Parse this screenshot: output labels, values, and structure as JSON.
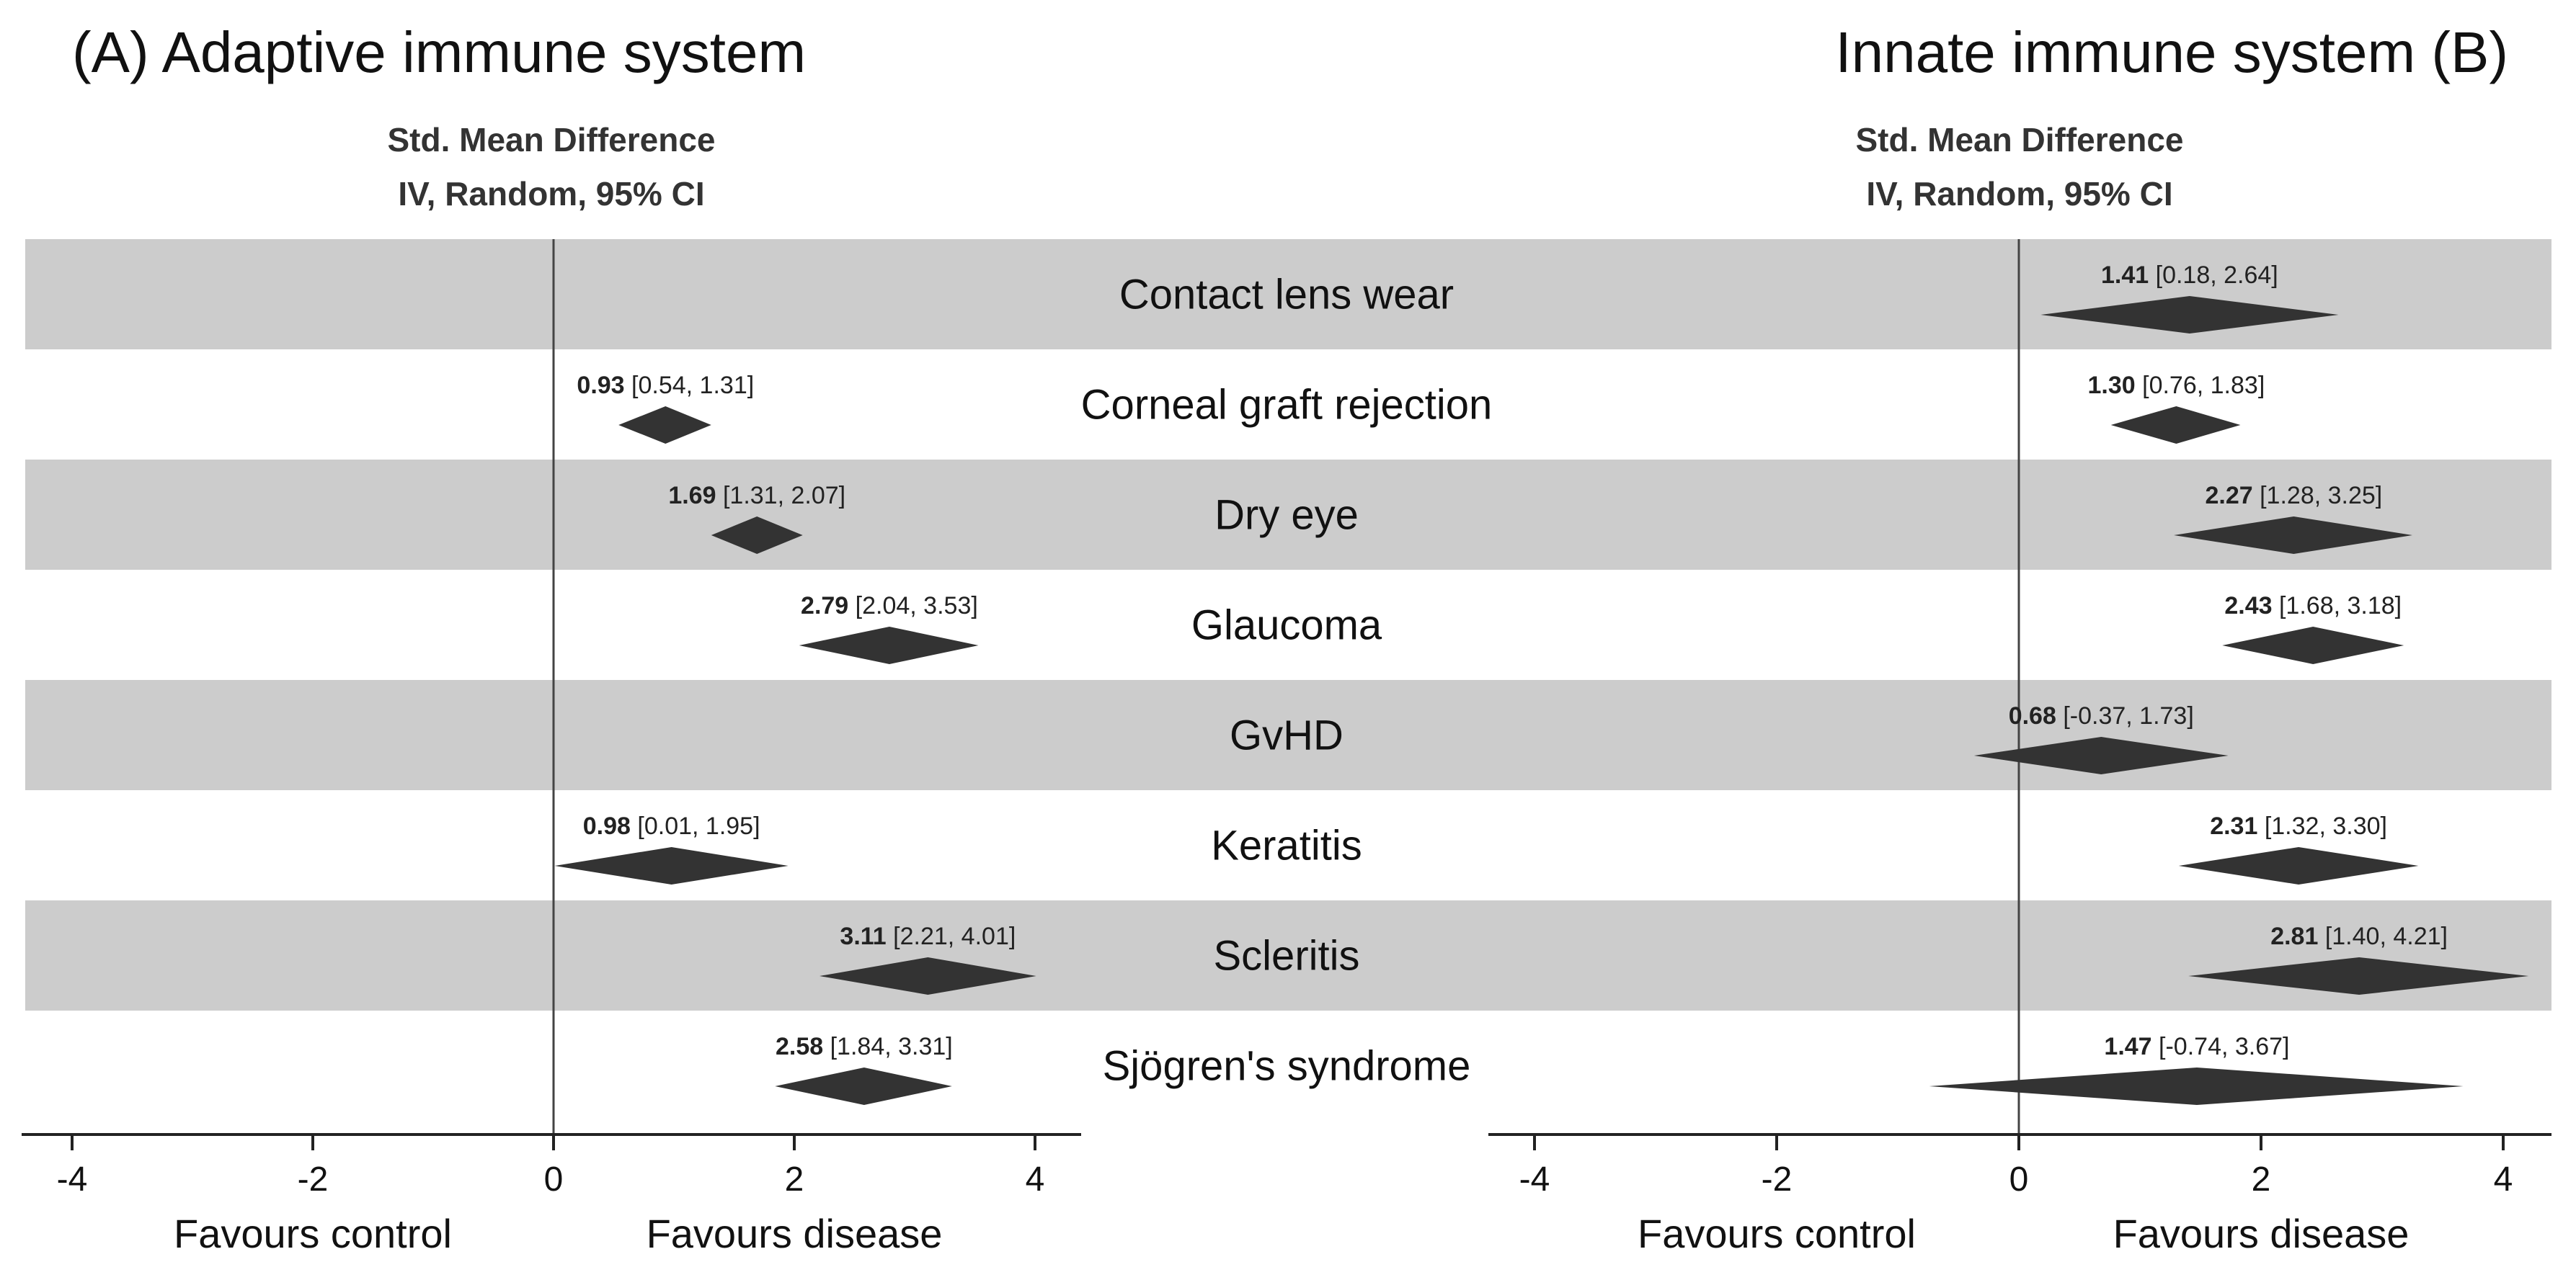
{
  "chart_data": [
    {
      "type": "forest",
      "title": "(A) Adaptive immune system",
      "header_line1": "Std. Mean Difference",
      "header_line2": "IV, Random, 95% CI",
      "xlim": [
        -4.4,
        4.4
      ],
      "xticks": [
        -4,
        -2,
        0,
        2,
        4
      ],
      "tick_labels": [
        "-4",
        "-2",
        "0",
        "2",
        "4"
      ],
      "xlabel_left": "Favours control",
      "xlabel_right": "Favours disease",
      "rows": [
        {
          "category": "Contact lens wear",
          "estimate": null,
          "lower": null,
          "upper": null,
          "label_est": "",
          "label_ci": ""
        },
        {
          "category": "Corneal graft rejection",
          "estimate": 0.93,
          "lower": 0.54,
          "upper": 1.31,
          "label_est": "0.93",
          "label_ci": "[0.54, 1.31]"
        },
        {
          "category": "Dry eye",
          "estimate": 1.69,
          "lower": 1.31,
          "upper": 2.07,
          "label_est": "1.69",
          "label_ci": "[1.31, 2.07]"
        },
        {
          "category": "Glaucoma",
          "estimate": 2.79,
          "lower": 2.04,
          "upper": 3.53,
          "label_est": "2.79",
          "label_ci": "[2.04, 3.53]"
        },
        {
          "category": "GvHD",
          "estimate": null,
          "lower": null,
          "upper": null,
          "label_est": "",
          "label_ci": ""
        },
        {
          "category": "Keratitis",
          "estimate": 0.98,
          "lower": 0.01,
          "upper": 1.95,
          "label_est": "0.98",
          "label_ci": "[0.01, 1.95]"
        },
        {
          "category": "Scleritis",
          "estimate": 3.11,
          "lower": 2.21,
          "upper": 4.01,
          "label_est": "3.11",
          "label_ci": "[2.21, 4.01]"
        },
        {
          "category": "Sjögren's syndrome",
          "estimate": 2.58,
          "lower": 1.84,
          "upper": 3.31,
          "label_est": "2.58",
          "label_ci": "[1.84, 3.31]"
        }
      ]
    },
    {
      "type": "forest",
      "title": "Innate immune system (B)",
      "header_line1": "Std. Mean Difference",
      "header_line2": "IV, Random, 95% CI",
      "xlim": [
        -4.4,
        4.4
      ],
      "xticks": [
        -4,
        -2,
        0,
        2,
        4
      ],
      "tick_labels": [
        "-4",
        "-2",
        "0",
        "2",
        "4"
      ],
      "xlabel_left": "Favours control",
      "xlabel_right": "Favours disease",
      "rows": [
        {
          "category": "Contact lens wear",
          "estimate": 1.41,
          "lower": 0.18,
          "upper": 2.64,
          "label_est": "1.41",
          "label_ci": "[0.18, 2.64]"
        },
        {
          "category": "Corneal graft rejection",
          "estimate": 1.3,
          "lower": 0.76,
          "upper": 1.83,
          "label_est": "1.30",
          "label_ci": "[0.76, 1.83]"
        },
        {
          "category": "Dry eye",
          "estimate": 2.27,
          "lower": 1.28,
          "upper": 3.25,
          "label_est": "2.27",
          "label_ci": "[1.28, 3.25]"
        },
        {
          "category": "Glaucoma",
          "estimate": 2.43,
          "lower": 1.68,
          "upper": 3.18,
          "label_est": "2.43",
          "label_ci": "[1.68, 3.18]"
        },
        {
          "category": "GvHD",
          "estimate": 0.68,
          "lower": -0.37,
          "upper": 1.73,
          "label_est": "0.68",
          "label_ci": "[-0.37, 1.73]"
        },
        {
          "category": "Keratitis",
          "estimate": 2.31,
          "lower": 1.32,
          "upper": 3.3,
          "label_est": "2.31",
          "label_ci": "[1.32, 3.30]"
        },
        {
          "category": "Scleritis",
          "estimate": 2.81,
          "lower": 1.4,
          "upper": 4.21,
          "label_est": "2.81",
          "label_ci": "[1.40, 4.21]"
        },
        {
          "category": "Sjögren's syndrome",
          "estimate": 1.47,
          "lower": -0.74,
          "upper": 3.67,
          "label_est": "1.47",
          "label_ci": "[-0.74, 3.67]"
        }
      ]
    }
  ],
  "colors": {
    "stripe": "#cccccc",
    "diamond": "#333333",
    "axis": "#222222",
    "zero_line": "#444444"
  }
}
